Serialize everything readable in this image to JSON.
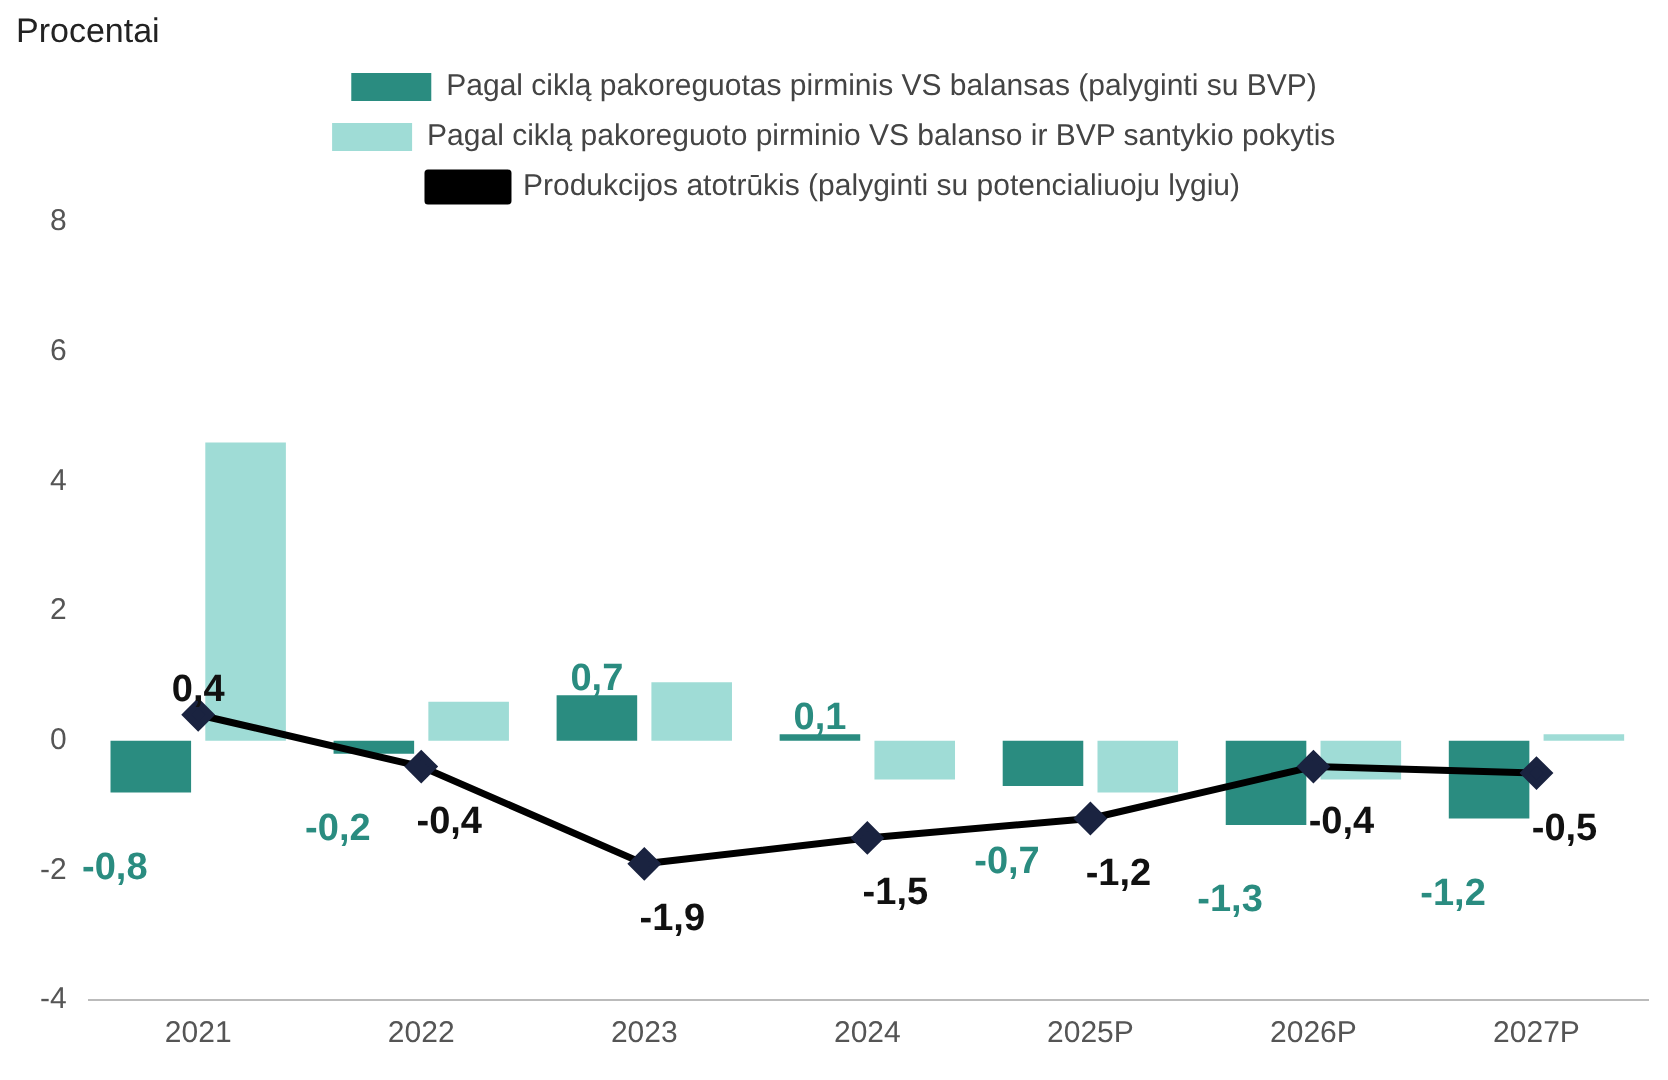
{
  "chart_data": {
    "type": "bar",
    "annotations": [
      "Procentai"
    ],
    "categories": [
      "2021",
      "2022",
      "2023",
      "2024",
      "2025P",
      "2026P",
      "2027P"
    ],
    "series": [
      {
        "name": "Pagal ciklą pakoreguotas pirminis VS balansas (palyginti su BVP)",
        "color": "#2a8c80",
        "values": [
          -0.8,
          -0.2,
          0.7,
          0.1,
          -0.7,
          -1.3,
          -1.2
        ],
        "value_labels": [
          "-0,8",
          "-0,2",
          "0,7",
          "0,1",
          "-0,7",
          "-1,3",
          "-1,2"
        ]
      },
      {
        "name": "Pagal ciklą pakoreguoto pirminio VS balanso ir BVP santykio pokytis",
        "color": "#9fdcd6",
        "values": [
          4.6,
          0.6,
          0.9,
          -0.6,
          -0.8,
          -0.6,
          0.1
        ]
      },
      {
        "name": "Produkcijos atotrūkis (palyginti su potencialiuoju lygiu)",
        "type": "line",
        "color": "#000000",
        "marker": "diamond",
        "values": [
          0.4,
          -0.4,
          -1.9,
          -1.5,
          -1.2,
          -0.4,
          -0.5
        ],
        "value_labels": [
          "0,4",
          "-0,4",
          "-1,9",
          "-1,5",
          "-1,2",
          "-0,4",
          "-0,5"
        ]
      }
    ],
    "ylim": [
      -4,
      8
    ],
    "yticks": [
      -4,
      -2,
      0,
      2,
      4,
      6,
      8
    ],
    "grid": false,
    "legend": "top"
  }
}
